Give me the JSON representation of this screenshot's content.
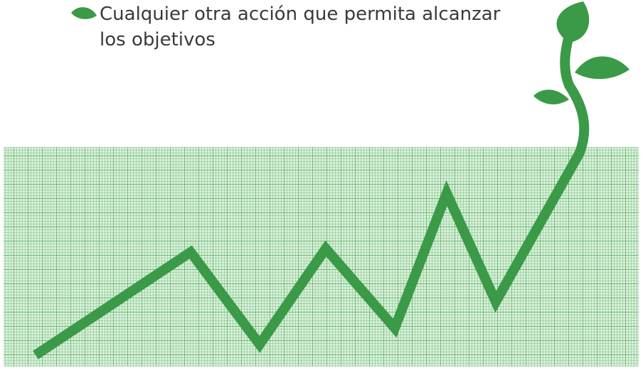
{
  "bullet": {
    "text": "Cualquier otra acción que permita alcanzar los objetivos"
  }
}
